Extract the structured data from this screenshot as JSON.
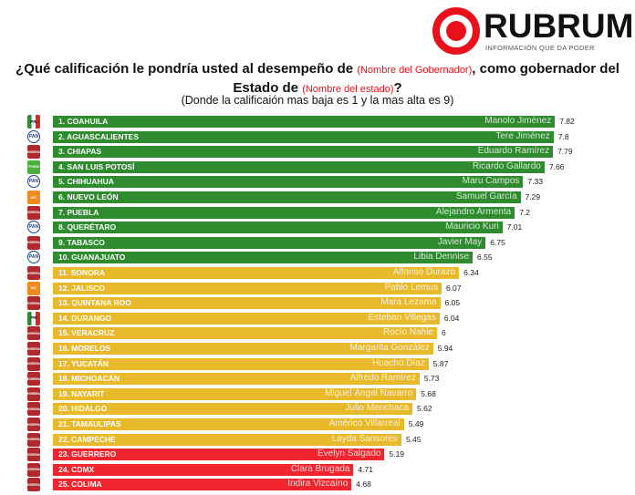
{
  "logo": {
    "name": "RUBRUM",
    "tagline": "INFORMACIÓN QUE DA PODER"
  },
  "header": {
    "q_part1": "¿Qué calificación le pondría usted al desempeño de ",
    "q_red1": "(Nombre del Gobernador)",
    "q_part2": ", como gobernador del Estado de ",
    "q_red2": "(Nombre del estado)",
    "q_part3": "?",
    "subtitle": "(Donde la calificaión mas baja es 1 y la mas alta es 9)"
  },
  "colors": {
    "high": "#2e8b2e",
    "mid": "#e9b92c",
    "low": "#f0262e",
    "morena": "#b3282d",
    "pan": "#1d3f8f",
    "mc": "#f28a1e",
    "pvem": "#4caf3a",
    "pri": "#d62a2a"
  },
  "chart_data": {
    "type": "bar",
    "orientation": "horizontal",
    "xlim": [
      0,
      9
    ],
    "items": [
      {
        "rank": "1. COAHUILA",
        "governor": "Manolo Jiménez",
        "value": 7.82,
        "party": "PRI",
        "tier": "high"
      },
      {
        "rank": "2. AGUASCALIENTES",
        "governor": "Tere Jiménez",
        "value": 7.8,
        "party": "PAN",
        "tier": "high"
      },
      {
        "rank": "3. CHIAPAS",
        "governor": "Eduardo Ramírez",
        "value": 7.79,
        "party": "MORENA",
        "tier": "high"
      },
      {
        "rank": "4. SAN LUIS POTOSÍ",
        "governor": "Ricardo Gallardo",
        "value": 7.66,
        "party": "PVEM",
        "tier": "high"
      },
      {
        "rank": "5. CHIHUAHUA",
        "governor": "Maru Campos",
        "value": 7.33,
        "party": "PAN",
        "tier": "high"
      },
      {
        "rank": "6. NUEVO LEÓN",
        "governor": "Samuel García",
        "value": 7.29,
        "party": "MC",
        "tier": "high"
      },
      {
        "rank": "7. PUEBLA",
        "governor": "Alejandro Armenta",
        "value": 7.2,
        "party": "MORENA",
        "tier": "high"
      },
      {
        "rank": "8. QUERÉTARO",
        "governor": "Mauricio Kuri",
        "value": 7.01,
        "party": "PAN",
        "tier": "high"
      },
      {
        "rank": "9. TABASCO",
        "governor": "Javier May",
        "value": 6.75,
        "party": "MORENA",
        "tier": "high"
      },
      {
        "rank": "10. GUANAJUATO",
        "governor": "Libia Dennise",
        "value": 6.55,
        "party": "PAN",
        "tier": "high"
      },
      {
        "rank": "11. SONORA",
        "governor": "Alfonso Durazo",
        "value": 6.34,
        "party": "MORENA",
        "tier": "mid"
      },
      {
        "rank": "12. JALISCO",
        "governor": "Pablo Lemus",
        "value": 6.07,
        "party": "MC",
        "tier": "mid"
      },
      {
        "rank": "13. QUINTANA ROO",
        "governor": "Mara Lezama",
        "value": 6.05,
        "party": "MORENA",
        "tier": "mid"
      },
      {
        "rank": "14. DURANGO",
        "governor": "Esteban Villegas",
        "value": 6.04,
        "party": "PRI",
        "tier": "mid"
      },
      {
        "rank": "15. VERACRUZ",
        "governor": "Rocío Nahle",
        "value": 6,
        "party": "MORENA",
        "tier": "mid"
      },
      {
        "rank": "16. MORELOS",
        "governor": "Margarita González",
        "value": 5.94,
        "party": "MORENA",
        "tier": "mid"
      },
      {
        "rank": "17. YUCATÁN",
        "governor": "Huacho Díaz",
        "value": 5.87,
        "party": "MORENA",
        "tier": "mid"
      },
      {
        "rank": "18. MICHOACÁN",
        "governor": "Alfredo Ramírez",
        "value": 5.73,
        "party": "MORENA",
        "tier": "mid"
      },
      {
        "rank": "19. NAYARIT",
        "governor": "Miguel Ángel Navarro",
        "value": 5.68,
        "party": "MORENA",
        "tier": "mid"
      },
      {
        "rank": "20. HIDALGO",
        "governor": "Julio Menchaca",
        "value": 5.62,
        "party": "MORENA",
        "tier": "mid"
      },
      {
        "rank": "21. TAMAULIPAS",
        "governor": "Américo Villarreal",
        "value": 5.49,
        "party": "MORENA",
        "tier": "mid"
      },
      {
        "rank": "22. CAMPECHE",
        "governor": "Layda Sansores",
        "value": 5.45,
        "party": "MORENA",
        "tier": "mid"
      },
      {
        "rank": "23. GUERRERO",
        "governor": "Evelyn Salgado",
        "value": 5.19,
        "party": "MORENA",
        "tier": "low"
      },
      {
        "rank": "24. CDMX",
        "governor": "Clara Brugada",
        "value": 4.71,
        "party": "MORENA",
        "tier": "low"
      },
      {
        "rank": "25. COLIMA",
        "governor": "Indira Vizcaíno",
        "value": 4.68,
        "party": "MORENA",
        "tier": "low"
      }
    ]
  }
}
